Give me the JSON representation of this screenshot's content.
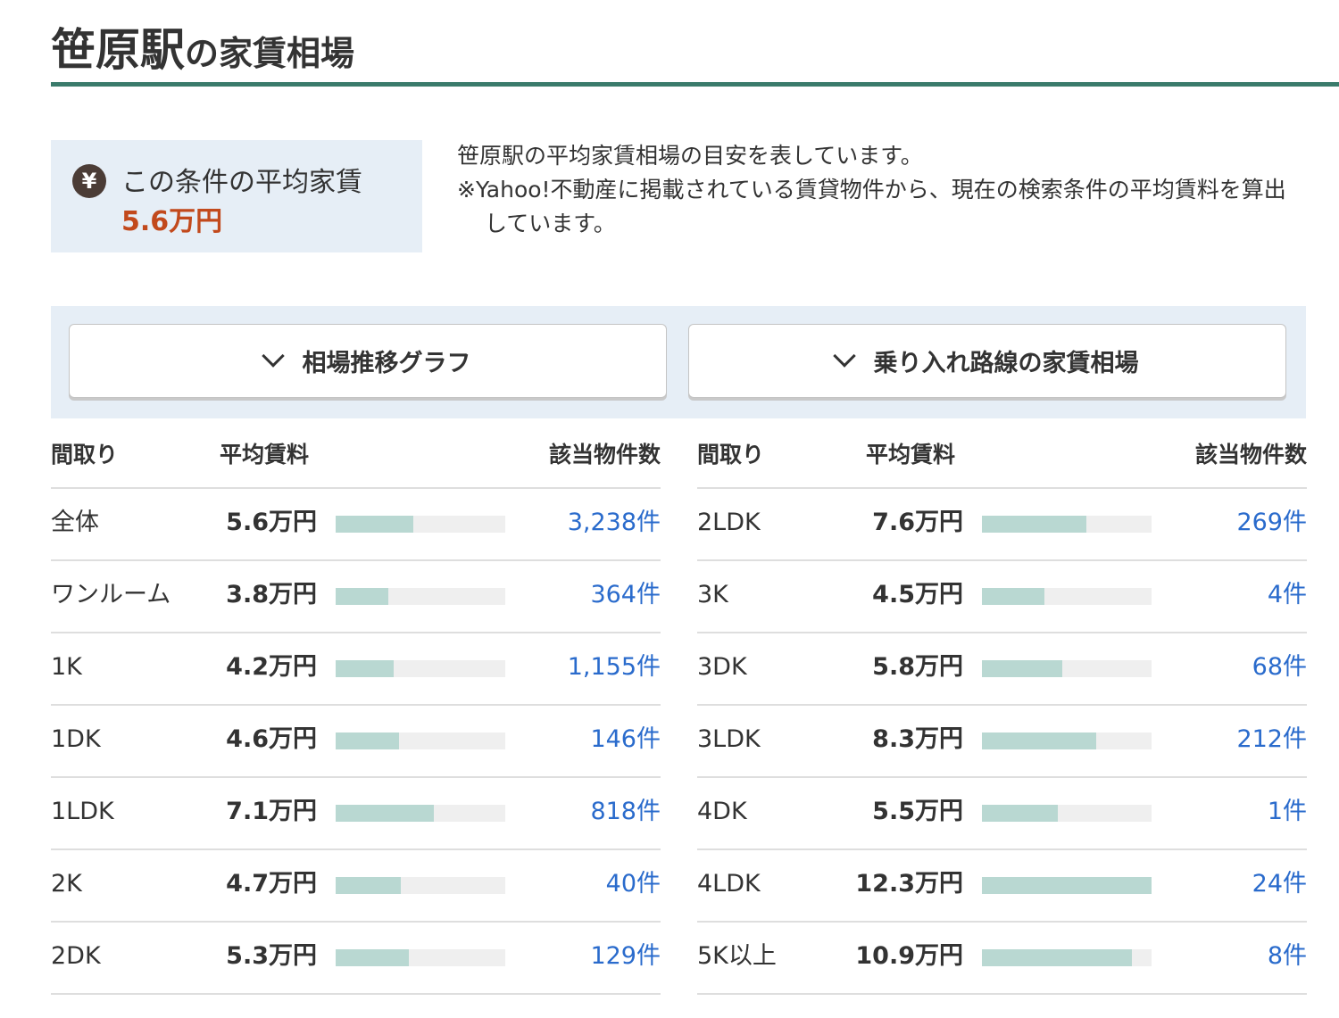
{
  "header": {
    "station": "笹原駅",
    "suffix": "の家賃相場"
  },
  "summary": {
    "icon": "yen-icon",
    "icon_glyph": "¥",
    "label": "この条件の平均家賃",
    "value": "5.6万円"
  },
  "description": {
    "line1": "笹原駅の平均家賃相場の目安を表しています。",
    "line2": "※Yahoo!不動産に掲載されている賃貸物件から、現在の検索条件の平均賃料を算出しています。"
  },
  "buttons": {
    "trend_graph": "相場推移グラフ",
    "connecting_lines": "乗り入れ路線の家賃相場"
  },
  "table": {
    "headers": {
      "layout": "間取り",
      "avg_rent": "平均賃料",
      "count": "該当物件数"
    },
    "left_rows": [
      {
        "layout": "全体",
        "rent": "5.6万円",
        "rent_value": 5.6,
        "count": "3,238件"
      },
      {
        "layout": "ワンルーム",
        "rent": "3.8万円",
        "rent_value": 3.8,
        "count": "364件"
      },
      {
        "layout": "1K",
        "rent": "4.2万円",
        "rent_value": 4.2,
        "count": "1,155件"
      },
      {
        "layout": "1DK",
        "rent": "4.6万円",
        "rent_value": 4.6,
        "count": "146件"
      },
      {
        "layout": "1LDK",
        "rent": "7.1万円",
        "rent_value": 7.1,
        "count": "818件"
      },
      {
        "layout": "2K",
        "rent": "4.7万円",
        "rent_value": 4.7,
        "count": "40件"
      },
      {
        "layout": "2DK",
        "rent": "5.3万円",
        "rent_value": 5.3,
        "count": "129件"
      }
    ],
    "right_rows": [
      {
        "layout": "2LDK",
        "rent": "7.6万円",
        "rent_value": 7.6,
        "count": "269件"
      },
      {
        "layout": "3K",
        "rent": "4.5万円",
        "rent_value": 4.5,
        "count": "4件"
      },
      {
        "layout": "3DK",
        "rent": "5.8万円",
        "rent_value": 5.8,
        "count": "68件"
      },
      {
        "layout": "3LDK",
        "rent": "8.3万円",
        "rent_value": 8.3,
        "count": "212件"
      },
      {
        "layout": "4DK",
        "rent": "5.5万円",
        "rent_value": 5.5,
        "count": "1件"
      },
      {
        "layout": "4LDK",
        "rent": "12.3万円",
        "rent_value": 12.3,
        "count": "24件"
      },
      {
        "layout": "5K以上",
        "rent": "10.9万円",
        "rent_value": 10.9,
        "count": "8件"
      }
    ],
    "bar_max": 12.3
  },
  "colors": {
    "accent_rule": "#3a7b6b",
    "price": "#c2491c",
    "link": "#2a6bcc",
    "bar_fill": "#b9d8d2",
    "panel_bg": "#e6eef6"
  }
}
